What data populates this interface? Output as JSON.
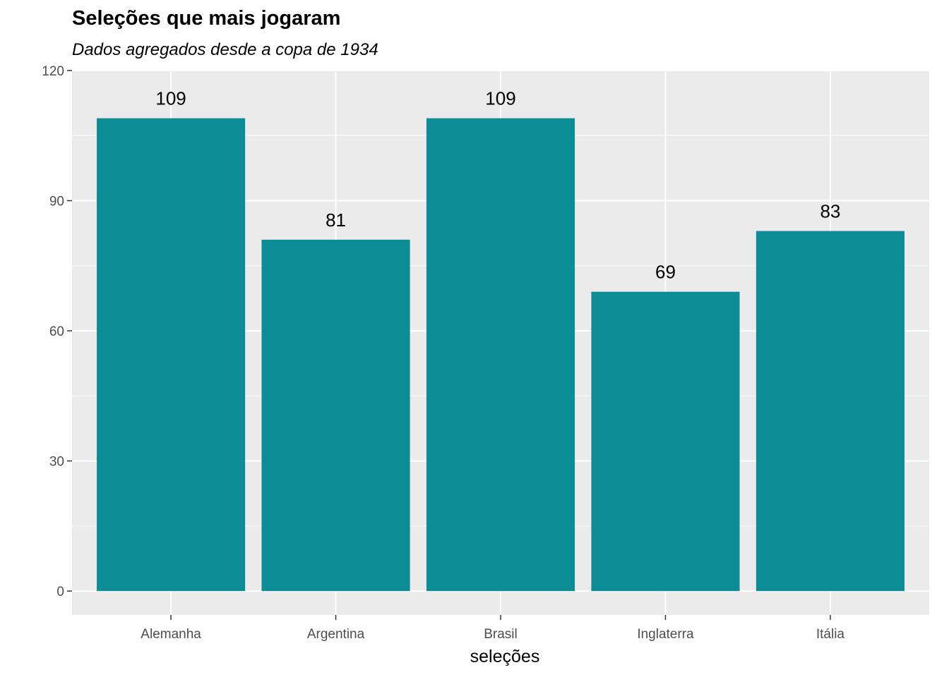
{
  "chart_data": {
    "type": "bar",
    "title": "Seleções que mais jogaram",
    "subtitle": "Dados agregados desde a copa de 1934",
    "xlabel": "seleções",
    "ylabel": "",
    "categories": [
      "Alemanha",
      "Argentina",
      "Brasil",
      "Inglaterra",
      "Itália"
    ],
    "values": [
      109,
      81,
      109,
      69,
      83
    ],
    "data_labels": [
      "109",
      "81",
      "109",
      "69",
      "83"
    ],
    "ylim": [
      -5.5,
      120
    ],
    "yticks": [
      0,
      30,
      60,
      90,
      120
    ],
    "grid": true,
    "legend": "none",
    "colors": {
      "bar": "#0c8c94",
      "panel_background": "#ebebeb",
      "grid_major": "#ffffff",
      "grid_minor": "#f7f7f7",
      "tick_label": "#4d4d4d"
    }
  }
}
